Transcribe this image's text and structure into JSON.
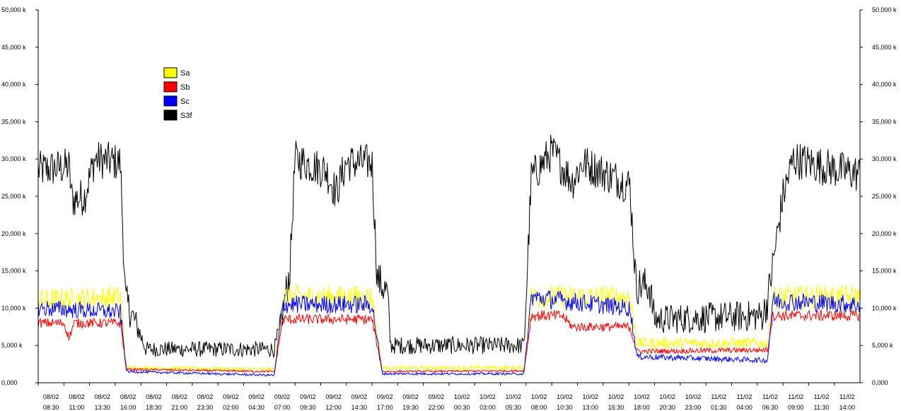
{
  "chart_data": {
    "type": "line",
    "title": "",
    "xlabel": "",
    "ylabel": "",
    "ylim": [
      0,
      50000
    ],
    "y_ticks": [
      {
        "value": 0,
        "label": "0,000"
      },
      {
        "value": 5000,
        "label": "5,000 k"
      },
      {
        "value": 10000,
        "label": "10,000 k"
      },
      {
        "value": 15000,
        "label": "15,000 k"
      },
      {
        "value": 20000,
        "label": "20,000 k"
      },
      {
        "value": 25000,
        "label": "25,000 k"
      },
      {
        "value": 30000,
        "label": "30,000 k"
      },
      {
        "value": 35000,
        "label": "35,000 k"
      },
      {
        "value": 40000,
        "label": "40,000 k"
      },
      {
        "value": 45000,
        "label": "45,000 k"
      },
      {
        "value": 50000,
        "label": "50,000 k"
      }
    ],
    "x_hours_range": [
      0,
      80
    ],
    "x_ticks": [
      {
        "date": "08/02",
        "time": "08:30"
      },
      {
        "date": "08/02",
        "time": "11:00"
      },
      {
        "date": "08/02",
        "time": "13:30"
      },
      {
        "date": "08/02",
        "time": "16:00"
      },
      {
        "date": "08/02",
        "time": "18:30"
      },
      {
        "date": "08/02",
        "time": "21:00"
      },
      {
        "date": "08/02",
        "time": "23:30"
      },
      {
        "date": "09/02",
        "time": "02:00"
      },
      {
        "date": "09/02",
        "time": "04:30"
      },
      {
        "date": "09/02",
        "time": "07:00"
      },
      {
        "date": "09/02",
        "time": "09:30"
      },
      {
        "date": "09/02",
        "time": "12:00"
      },
      {
        "date": "09/02",
        "time": "14:30"
      },
      {
        "date": "09/02",
        "time": "17:00"
      },
      {
        "date": "09/02",
        "time": "19:30"
      },
      {
        "date": "09/02",
        "time": "22:00"
      },
      {
        "date": "10/02",
        "time": "00:30"
      },
      {
        "date": "10/02",
        "time": "03:00"
      },
      {
        "date": "10/02",
        "time": "05:30"
      },
      {
        "date": "10/02",
        "time": "08:00"
      },
      {
        "date": "10/02",
        "time": "10:30"
      },
      {
        "date": "10/02",
        "time": "13:00"
      },
      {
        "date": "10/02",
        "time": "15:30"
      },
      {
        "date": "10/02",
        "time": "18:00"
      },
      {
        "date": "10/02",
        "time": "20:30"
      },
      {
        "date": "10/02",
        "time": "23:00"
      },
      {
        "date": "11/02",
        "time": "01:30"
      },
      {
        "date": "11/02",
        "time": "04:00"
      },
      {
        "date": "11/02",
        "time": "06:30"
      },
      {
        "date": "11/02",
        "time": "09:00"
      },
      {
        "date": "11/02",
        "time": "11:30"
      },
      {
        "date": "11/02",
        "time": "14:00"
      }
    ],
    "legend": {
      "position": "top-left"
    },
    "grid": false,
    "series": [
      {
        "name": "Sa",
        "color": "#ffff00",
        "noise": 1600,
        "points": [
          [
            0,
            11000
          ],
          [
            8,
            11500
          ],
          [
            8.6,
            2000
          ],
          [
            23,
            1800
          ],
          [
            23.8,
            11500
          ],
          [
            32.5,
            11500
          ],
          [
            33.5,
            2000
          ],
          [
            47.3,
            2000
          ],
          [
            48,
            11500
          ],
          [
            57.6,
            11500
          ],
          [
            58.3,
            5300
          ],
          [
            71,
            5300
          ],
          [
            71.5,
            11500
          ],
          [
            80,
            11500
          ]
        ]
      },
      {
        "name": "Sb",
        "color": "#ff0000",
        "noise": 900,
        "points": [
          [
            0,
            8000
          ],
          [
            2.5,
            8000
          ],
          [
            3,
            6000
          ],
          [
            3.5,
            8000
          ],
          [
            8,
            8000
          ],
          [
            8.6,
            1800
          ],
          [
            23,
            1500
          ],
          [
            23.8,
            8500
          ],
          [
            32.5,
            8500
          ],
          [
            33.5,
            1500
          ],
          [
            47.3,
            1600
          ],
          [
            48,
            9000
          ],
          [
            51,
            9000
          ],
          [
            52,
            7500
          ],
          [
            57.6,
            7500
          ],
          [
            58.3,
            4200
          ],
          [
            71,
            4400
          ],
          [
            71.5,
            9000
          ],
          [
            80,
            9000
          ]
        ]
      },
      {
        "name": "Sc",
        "color": "#0000ff",
        "noise": 1300,
        "points": [
          [
            0,
            10000
          ],
          [
            8,
            9500
          ],
          [
            8.6,
            1500
          ],
          [
            23,
            1000
          ],
          [
            23.8,
            10500
          ],
          [
            32.5,
            10500
          ],
          [
            33.5,
            1200
          ],
          [
            47.3,
            1200
          ],
          [
            48,
            11500
          ],
          [
            57.6,
            10000
          ],
          [
            58.3,
            3500
          ],
          [
            71,
            3000
          ],
          [
            71.5,
            11000
          ],
          [
            80,
            10500
          ]
        ]
      },
      {
        "name": "S3f",
        "color": "#000000",
        "noise": 2600,
        "points": [
          [
            0,
            28500
          ],
          [
            3,
            29000
          ],
          [
            3.3,
            24500
          ],
          [
            4.5,
            25000
          ],
          [
            5.5,
            30000
          ],
          [
            8,
            29500
          ],
          [
            8.5,
            11000
          ],
          [
            9.5,
            8000
          ],
          [
            10.5,
            4500
          ],
          [
            23,
            4500
          ],
          [
            23.5,
            7000
          ],
          [
            24.5,
            15000
          ],
          [
            25,
            30000
          ],
          [
            28,
            28500
          ],
          [
            29,
            25500
          ],
          [
            30,
            29500
          ],
          [
            32.5,
            29500
          ],
          [
            33,
            14000
          ],
          [
            34,
            12000
          ],
          [
            34.3,
            5000
          ],
          [
            47.3,
            5000
          ],
          [
            48,
            27500
          ],
          [
            50,
            31000
          ],
          [
            52,
            27000
          ],
          [
            53,
            29500
          ],
          [
            57.6,
            26500
          ],
          [
            58.2,
            13000
          ],
          [
            59.5,
            13000
          ],
          [
            60,
            8500
          ],
          [
            70.5,
            9000
          ],
          [
            71,
            11000
          ],
          [
            72.5,
            25000
          ],
          [
            73.5,
            30000
          ],
          [
            78,
            28500
          ],
          [
            80,
            28000
          ]
        ]
      }
    ]
  }
}
